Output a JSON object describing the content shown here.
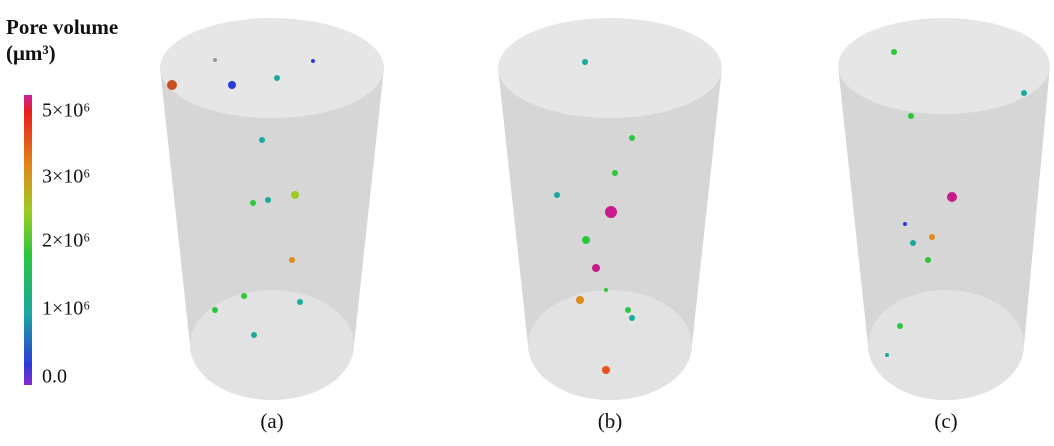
{
  "legend": {
    "title": [
      "Pore volume",
      "(μm³)"
    ],
    "ticks": [
      "5×10⁶",
      "3×10⁶",
      "2×10⁶",
      "1×10⁶",
      "0.0"
    ]
  },
  "panels": [
    {
      "label": "(a)"
    },
    {
      "label": "(b)"
    },
    {
      "label": "(c)"
    }
  ]
}
